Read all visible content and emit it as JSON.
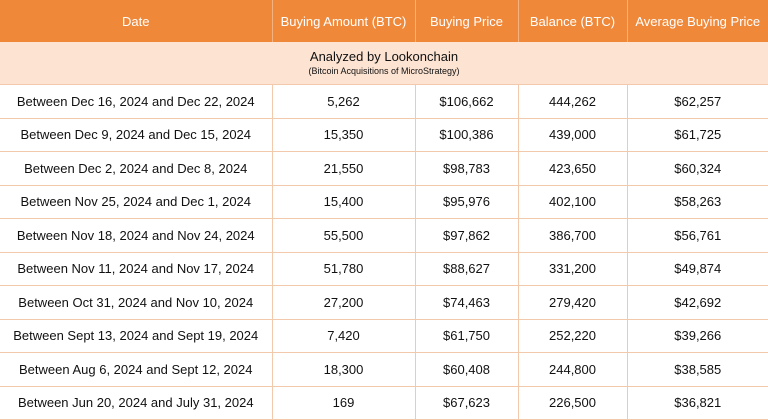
{
  "colors": {
    "header_bg": "#f0883a",
    "banner_bg": "#fde3d2",
    "grid_line": "#f3c9ab"
  },
  "table": {
    "headers": [
      "Date",
      "Buying Amount (BTC)",
      "Buying Price",
      "Balance (BTC)",
      "Average Buying Price"
    ],
    "banner_title": "Analyzed by Lookonchain",
    "banner_subtitle": "(Bitcoin Acquisitions of MicroStrategy)",
    "rows": [
      [
        "Between Dec 16, 2024 and Dec 22, 2024",
        "5,262",
        "$106,662",
        "444,262",
        "$62,257"
      ],
      [
        "Between Dec 9, 2024 and Dec 15, 2024",
        "15,350",
        "$100,386",
        "439,000",
        "$61,725"
      ],
      [
        "Between Dec 2, 2024 and Dec 8, 2024",
        "21,550",
        "$98,783",
        "423,650",
        "$60,324"
      ],
      [
        "Between Nov 25, 2024 and Dec 1, 2024",
        "15,400",
        "$95,976",
        "402,100",
        "$58,263"
      ],
      [
        "Between Nov 18, 2024 and Nov 24, 2024",
        "55,500",
        "$97,862",
        "386,700",
        "$56,761"
      ],
      [
        "Between Nov 11, 2024 and Nov 17, 2024",
        "51,780",
        "$88,627",
        "331,200",
        "$49,874"
      ],
      [
        "Between Oct 31, 2024 and Nov 10, 2024",
        "27,200",
        "$74,463",
        "279,420",
        "$42,692"
      ],
      [
        "Between Sept 13, 2024 and Sept 19, 2024",
        "7,420",
        "$61,750",
        "252,220",
        "$39,266"
      ],
      [
        "Between Aug 6, 2024 and Sept 12, 2024",
        "18,300",
        "$60,408",
        "244,800",
        "$38,585"
      ],
      [
        "Between Jun 20, 2024 and July 31, 2024",
        "169",
        "$67,623",
        "226,500",
        "$36,821"
      ]
    ]
  }
}
